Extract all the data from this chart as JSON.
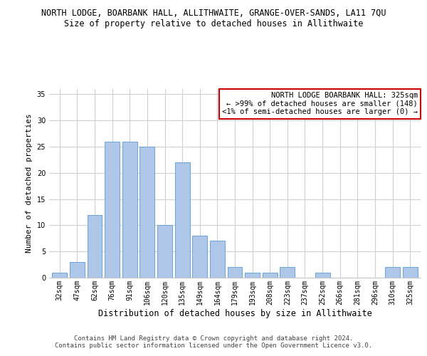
{
  "title": "NORTH LODGE, BOARBANK HALL, ALLITHWAITE, GRANGE-OVER-SANDS, LA11 7QU",
  "subtitle": "Size of property relative to detached houses in Allithwaite",
  "xlabel": "Distribution of detached houses by size in Allithwaite",
  "ylabel": "Number of detached properties",
  "categories": [
    "32sqm",
    "47sqm",
    "62sqm",
    "76sqm",
    "91sqm",
    "106sqm",
    "120sqm",
    "135sqm",
    "149sqm",
    "164sqm",
    "179sqm",
    "193sqm",
    "208sqm",
    "223sqm",
    "237sqm",
    "252sqm",
    "266sqm",
    "281sqm",
    "296sqm",
    "310sqm",
    "325sqm"
  ],
  "values": [
    1,
    3,
    12,
    26,
    26,
    25,
    10,
    22,
    8,
    7,
    2,
    1,
    1,
    2,
    0,
    1,
    0,
    0,
    0,
    2,
    2
  ],
  "bar_color": "#aec6e8",
  "bar_edge_color": "#5b9bd5",
  "ylim": [
    0,
    36
  ],
  "yticks": [
    0,
    5,
    10,
    15,
    20,
    25,
    30,
    35
  ],
  "grid_color": "#d0d0d0",
  "background_color": "#ffffff",
  "annotation_text": "NORTH LODGE BOARBANK HALL: 325sqm\n← >99% of detached houses are smaller (148)\n<1% of semi-detached houses are larger (0) →",
  "annotation_box_color": "#ffffff",
  "annotation_box_edge_color": "#cc0000",
  "footer_line1": "Contains HM Land Registry data © Crown copyright and database right 2024.",
  "footer_line2": "Contains public sector information licensed under the Open Government Licence v3.0.",
  "title_fontsize": 8.5,
  "subtitle_fontsize": 8.5,
  "xlabel_fontsize": 8.5,
  "ylabel_fontsize": 8,
  "tick_fontsize": 7,
  "annotation_fontsize": 7.5,
  "footer_fontsize": 6.5
}
